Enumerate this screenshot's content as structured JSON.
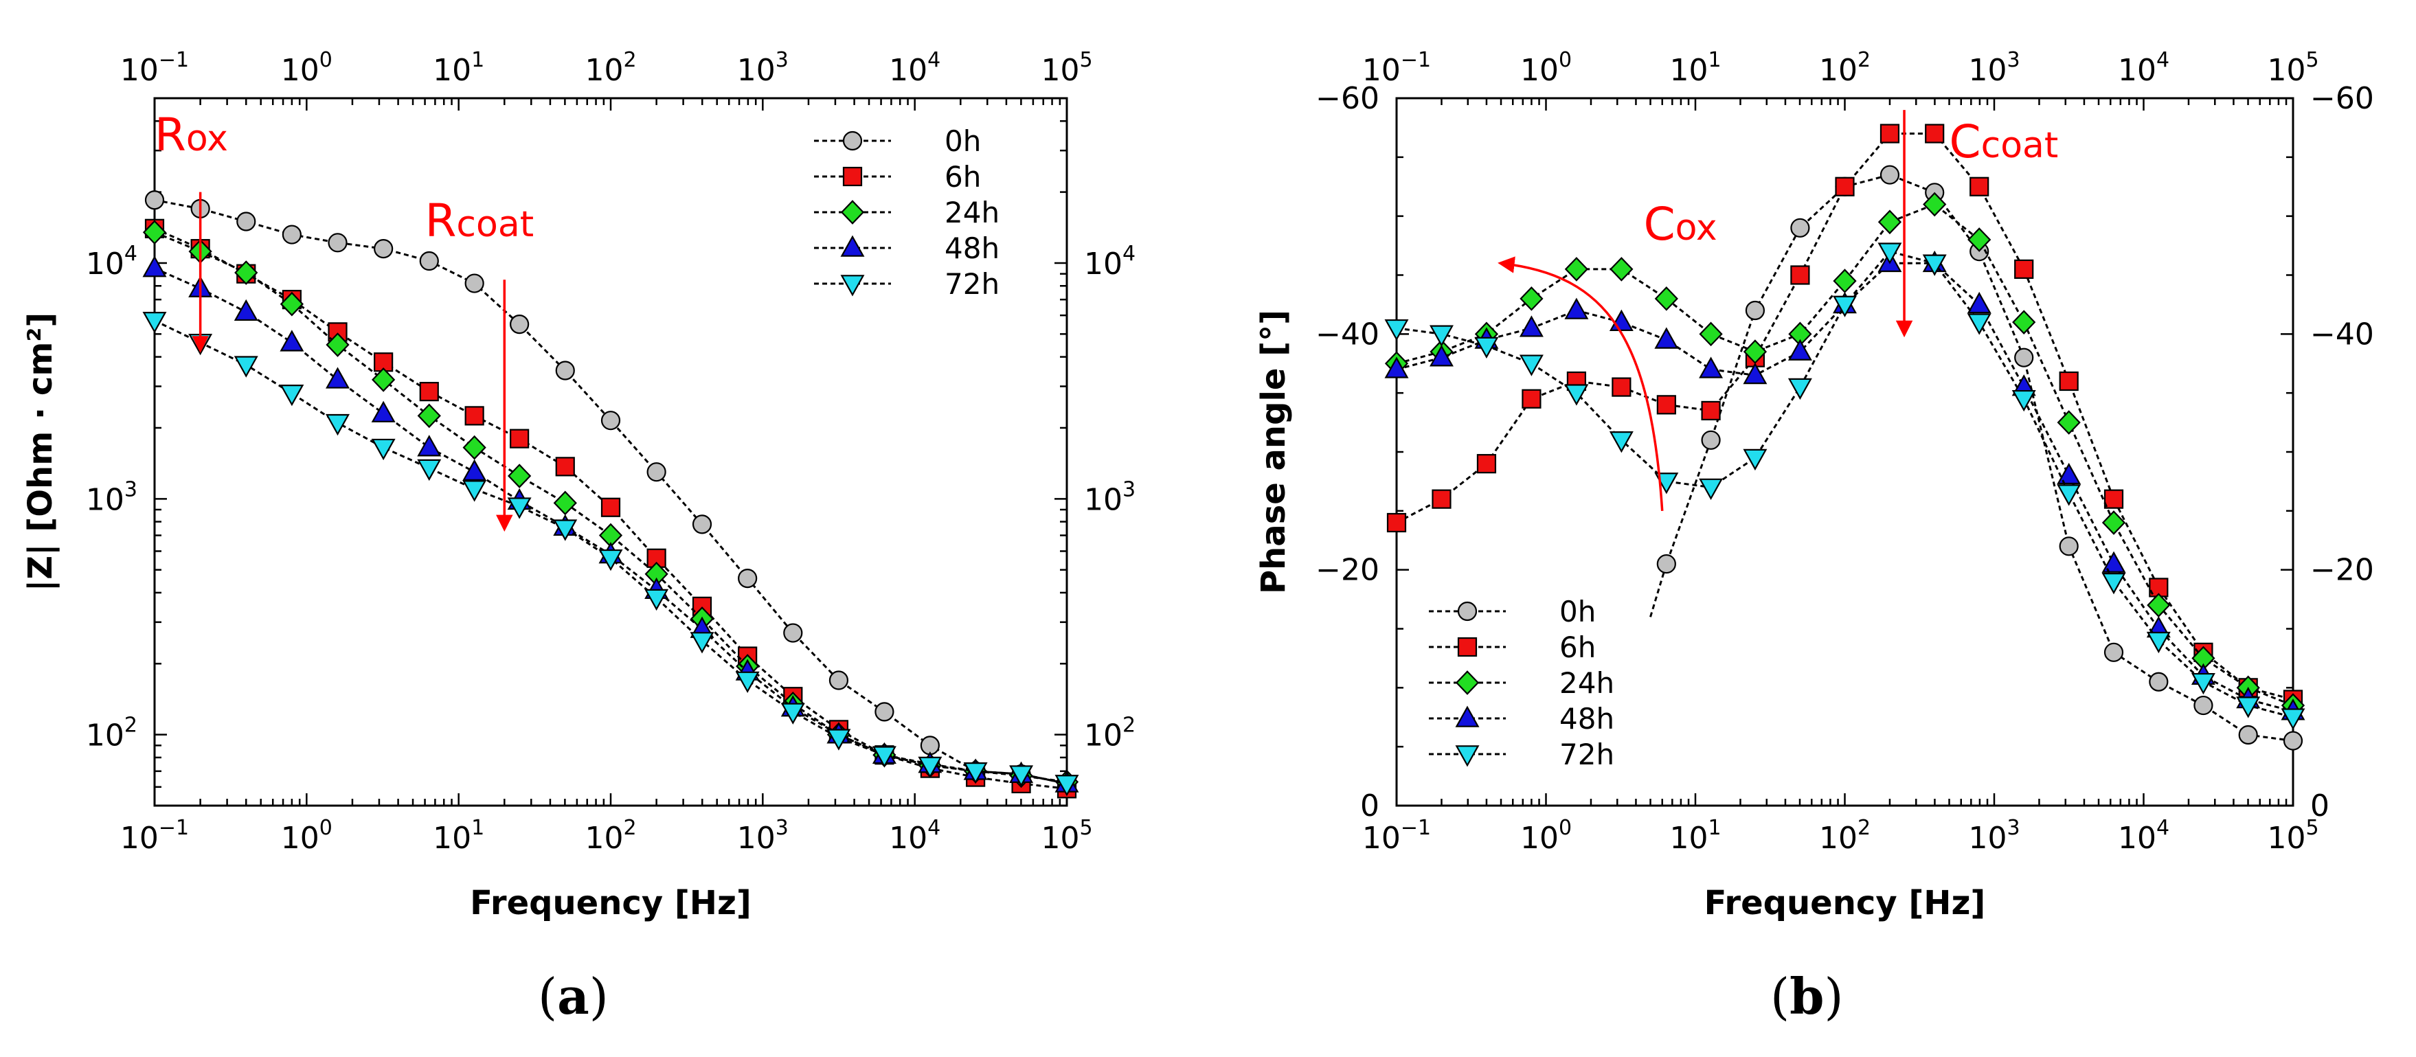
{
  "figure": {
    "panel_a_label": "a",
    "panel_b_label": "b"
  },
  "colors": {
    "marker_outline": "#000000",
    "annotation": "#ff0000",
    "series": {
      "0h": "#c0c0c0",
      "6h": "#ee1111",
      "24h": "#22dd22",
      "48h": "#1111dd",
      "72h": "#22ddee"
    }
  },
  "chart_data": [
    {
      "id": "a",
      "type": "line",
      "xscale": "log",
      "yscale": "log",
      "xlabel": "Frequency [Hz]",
      "ylabel": "|Z| [Ohm · cm²]",
      "xlim": [
        0.1,
        100000
      ],
      "ylim": [
        50,
        50000
      ],
      "x_ticks": [
        0.1,
        1,
        10,
        100,
        1000,
        10000,
        100000
      ],
      "x_tick_labels": [
        [
          "10",
          "−1"
        ],
        [
          "10",
          "0"
        ],
        [
          "10",
          "1"
        ],
        [
          "10",
          "2"
        ],
        [
          "10",
          "3"
        ],
        [
          "10",
          "4"
        ],
        [
          "10",
          "5"
        ]
      ],
      "y_ticks": [
        100,
        1000,
        10000
      ],
      "y_tick_labels": [
        [
          "10",
          "2"
        ],
        [
          "10",
          "3"
        ],
        [
          "10",
          "4"
        ]
      ],
      "top_axis_labels": true,
      "right_axis_labels": true,
      "legend_position": "top-right",
      "annotations": [
        {
          "text": "R",
          "sub": "ox",
          "x": 0.1,
          "y": 30000,
          "arrow": [
            [
              0.2,
              20000
            ],
            [
              0.2,
              4300
            ]
          ]
        },
        {
          "text": "R",
          "sub": "coat",
          "x": 6,
          "y": 13000,
          "arrow": [
            [
              20,
              8500
            ],
            [
              20,
              750
            ]
          ]
        }
      ],
      "series": [
        {
          "name": "0h",
          "marker": "circle",
          "x": [
            0.1,
            0.2,
            0.4,
            0.8,
            1.6,
            3.2,
            6.4,
            12.7,
            25.1,
            50.2,
            100,
            200,
            399,
            794,
            1580,
            3160,
            6310,
            12600,
            25100,
            50100,
            100000
          ],
          "y": [
            18500,
            17000,
            15000,
            13200,
            12200,
            11500,
            10200,
            8200,
            5500,
            3500,
            2150,
            1300,
            780,
            460,
            270,
            170,
            125,
            90,
            70,
            68,
            62
          ]
        },
        {
          "name": "6h",
          "marker": "square",
          "x": [
            0.1,
            0.2,
            0.4,
            0.8,
            1.6,
            3.2,
            6.4,
            12.7,
            25.1,
            50.2,
            100,
            200,
            399,
            794,
            1580,
            3160,
            6310,
            12600,
            25100,
            50100,
            100000
          ],
          "y": [
            14000,
            11500,
            9000,
            7000,
            5100,
            3800,
            2850,
            2250,
            1800,
            1370,
            920,
            560,
            350,
            215,
            145,
            105,
            82,
            72,
            66,
            62,
            59
          ]
        },
        {
          "name": "24h",
          "marker": "diamond",
          "x": [
            0.1,
            0.2,
            0.4,
            0.8,
            1.6,
            3.2,
            6.4,
            12.7,
            25.1,
            50.2,
            100,
            200,
            399,
            794,
            1580,
            3160,
            6310,
            12600,
            25100,
            50100,
            100000
          ],
          "y": [
            13500,
            11200,
            9100,
            6700,
            4500,
            3200,
            2250,
            1650,
            1250,
            960,
            700,
            480,
            310,
            195,
            135,
            100,
            82,
            74,
            70,
            67,
            63
          ]
        },
        {
          "name": "48h",
          "marker": "triangle-up",
          "x": [
            0.1,
            0.2,
            0.4,
            0.8,
            1.6,
            3.2,
            6.4,
            12.7,
            25.1,
            50.2,
            100,
            200,
            399,
            794,
            1580,
            3160,
            6310,
            12600,
            25100,
            50100,
            100000
          ],
          "y": [
            9500,
            7800,
            6200,
            4600,
            3200,
            2300,
            1650,
            1300,
            980,
            760,
            580,
            410,
            280,
            185,
            130,
            100,
            82,
            75,
            70,
            68,
            62
          ]
        },
        {
          "name": "72h",
          "marker": "triangle-down",
          "x": [
            0.1,
            0.2,
            0.4,
            0.8,
            1.6,
            3.2,
            6.4,
            12.7,
            25.1,
            50.2,
            100,
            200,
            399,
            794,
            1580,
            3160,
            6310,
            12600,
            25100,
            50100,
            100000
          ],
          "y": [
            5700,
            4600,
            3700,
            2800,
            2100,
            1650,
            1350,
            1100,
            930,
            750,
            560,
            380,
            250,
            170,
            125,
            97,
            82,
            74,
            70,
            68,
            62
          ]
        }
      ]
    },
    {
      "id": "b",
      "type": "line",
      "xscale": "log",
      "yscale": "linear",
      "xlabel": "Frequency [Hz]",
      "ylabel": "Phase angle [°]",
      "xlim": [
        0.1,
        100000
      ],
      "ylim": [
        0,
        -60
      ],
      "x_ticks": [
        0.1,
        1,
        10,
        100,
        1000,
        10000,
        100000
      ],
      "x_tick_labels": [
        [
          "10",
          "−1"
        ],
        [
          "10",
          "0"
        ],
        [
          "10",
          "1"
        ],
        [
          "10",
          "2"
        ],
        [
          "10",
          "3"
        ],
        [
          "10",
          "4"
        ],
        [
          "10",
          "5"
        ]
      ],
      "y_ticks": [
        0,
        -20,
        -40,
        -60
      ],
      "y_tick_labels": [
        "0",
        "−20",
        "−40",
        "−60"
      ],
      "top_axis_labels": true,
      "right_axis_labels": true,
      "legend_position": "bottom-left",
      "annotations": [
        {
          "text": "C",
          "sub": "ox",
          "x": 4.5,
          "y": -48,
          "arrow_curve": [
            [
              6,
              -25
            ],
            [
              5,
              -40
            ],
            [
              2.5,
              -45
            ],
            [
              0.5,
              -46
            ]
          ]
        },
        {
          "text": "C",
          "sub": "coat",
          "x": 500,
          "y": -55,
          "arrow": [
            [
              250,
              -59
            ],
            [
              250,
              -40
            ]
          ]
        }
      ],
      "series": [
        {
          "name": "0h",
          "marker": "circle",
          "x": [
            5,
            6.4,
            12.7,
            25.1,
            50.2,
            100,
            200,
            399,
            794,
            1580,
            3160,
            6310,
            12600,
            25100,
            50100,
            100000
          ],
          "y": [
            -16,
            -20.5,
            -31,
            -42,
            -49,
            -52.5,
            -53.5,
            -52,
            -47,
            -38,
            -22,
            -13,
            -10.5,
            -8.5,
            -6,
            -5.5
          ],
          "markers_from_index": 1
        },
        {
          "name": "6h",
          "marker": "square",
          "x": [
            0.1,
            0.2,
            0.4,
            0.8,
            1.6,
            3.2,
            6.4,
            12.7,
            25.1,
            50.2,
            100,
            200,
            399,
            794,
            1580,
            3160,
            6310,
            12600,
            25100,
            50100,
            100000
          ],
          "y": [
            -24,
            -26,
            -29,
            -34.5,
            -36,
            -35.5,
            -34,
            -33.5,
            -38,
            -45,
            -52.5,
            -57,
            -57,
            -52.5,
            -45.5,
            -36,
            -26,
            -18.5,
            -13,
            -10,
            -9
          ]
        },
        {
          "name": "24h",
          "marker": "diamond",
          "x": [
            0.1,
            0.2,
            0.4,
            0.8,
            1.6,
            3.2,
            6.4,
            12.7,
            25.1,
            50.2,
            100,
            200,
            399,
            794,
            1580,
            3160,
            6310,
            12600,
            25100,
            50100,
            100000
          ],
          "y": [
            -37.5,
            -38.5,
            -40,
            -43,
            -45.5,
            -45.5,
            -43,
            -40,
            -38.5,
            -40,
            -44.5,
            -49.5,
            -51,
            -48,
            -41,
            -32.5,
            -24,
            -17,
            -12.5,
            -10,
            -8.5
          ]
        },
        {
          "name": "48h",
          "marker": "triangle-up",
          "x": [
            0.1,
            0.2,
            0.4,
            0.8,
            1.6,
            3.2,
            6.4,
            12.7,
            25.1,
            50.2,
            100,
            200,
            399,
            794,
            1580,
            3160,
            6310,
            12600,
            25100,
            50100,
            100000
          ],
          "y": [
            -37,
            -38,
            -39.5,
            -40.5,
            -42,
            -41,
            -39.5,
            -37,
            -36.5,
            -38.5,
            -42.5,
            -46,
            -46,
            -42.5,
            -35.5,
            -28,
            -20.5,
            -15,
            -11,
            -9,
            -8
          ]
        },
        {
          "name": "72h",
          "marker": "triangle-down",
          "x": [
            0.1,
            0.2,
            0.4,
            0.8,
            1.6,
            3.2,
            6.4,
            12.7,
            25.1,
            50.2,
            100,
            200,
            399,
            794,
            1580,
            3160,
            6310,
            12600,
            25100,
            50100,
            100000
          ],
          "y": [
            -40.5,
            -40,
            -39,
            -37.5,
            -35,
            -31,
            -27.5,
            -27,
            -29.5,
            -35.5,
            -42.5,
            -47,
            -46,
            -41,
            -34.5,
            -26.5,
            -19,
            -14,
            -10.5,
            -8.5,
            -7.5
          ]
        }
      ]
    }
  ]
}
